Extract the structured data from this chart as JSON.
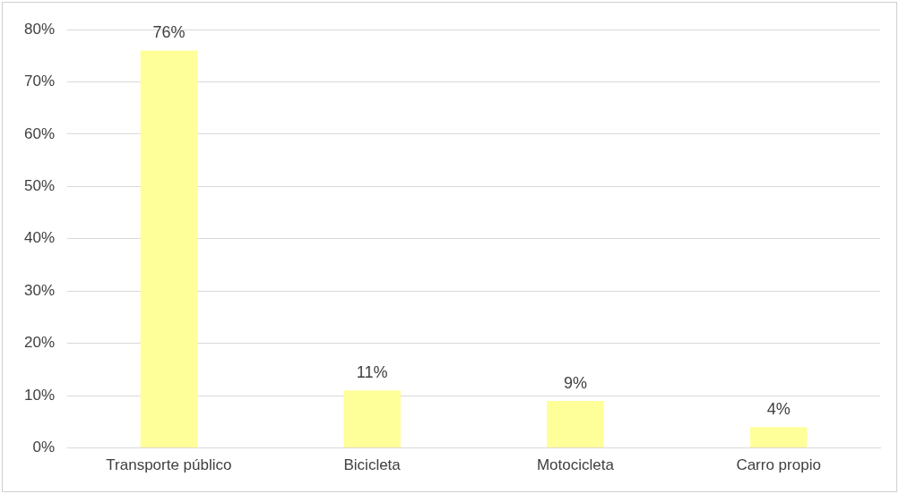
{
  "chart_data": {
    "type": "bar",
    "categories": [
      "Transporte público",
      "Bicicleta",
      "Motocicleta",
      "Carro propio"
    ],
    "values": [
      76,
      11,
      9,
      4
    ],
    "color": "#ffff99",
    "value_labels": [
      "76%",
      "11%",
      "9%",
      "4%"
    ],
    "ylim": [
      0,
      80
    ],
    "yticks": [
      {
        "value": 0,
        "label": "0%"
      },
      {
        "value": 10,
        "label": "10%"
      },
      {
        "value": 20,
        "label": "20%"
      },
      {
        "value": 30,
        "label": "30%"
      },
      {
        "value": 40,
        "label": "40%"
      },
      {
        "value": 50,
        "label": "50%"
      },
      {
        "value": 60,
        "label": "60%"
      },
      {
        "value": 70,
        "label": "70%"
      },
      {
        "value": 80,
        "label": "80%"
      }
    ],
    "grid": "y",
    "legend": false
  }
}
